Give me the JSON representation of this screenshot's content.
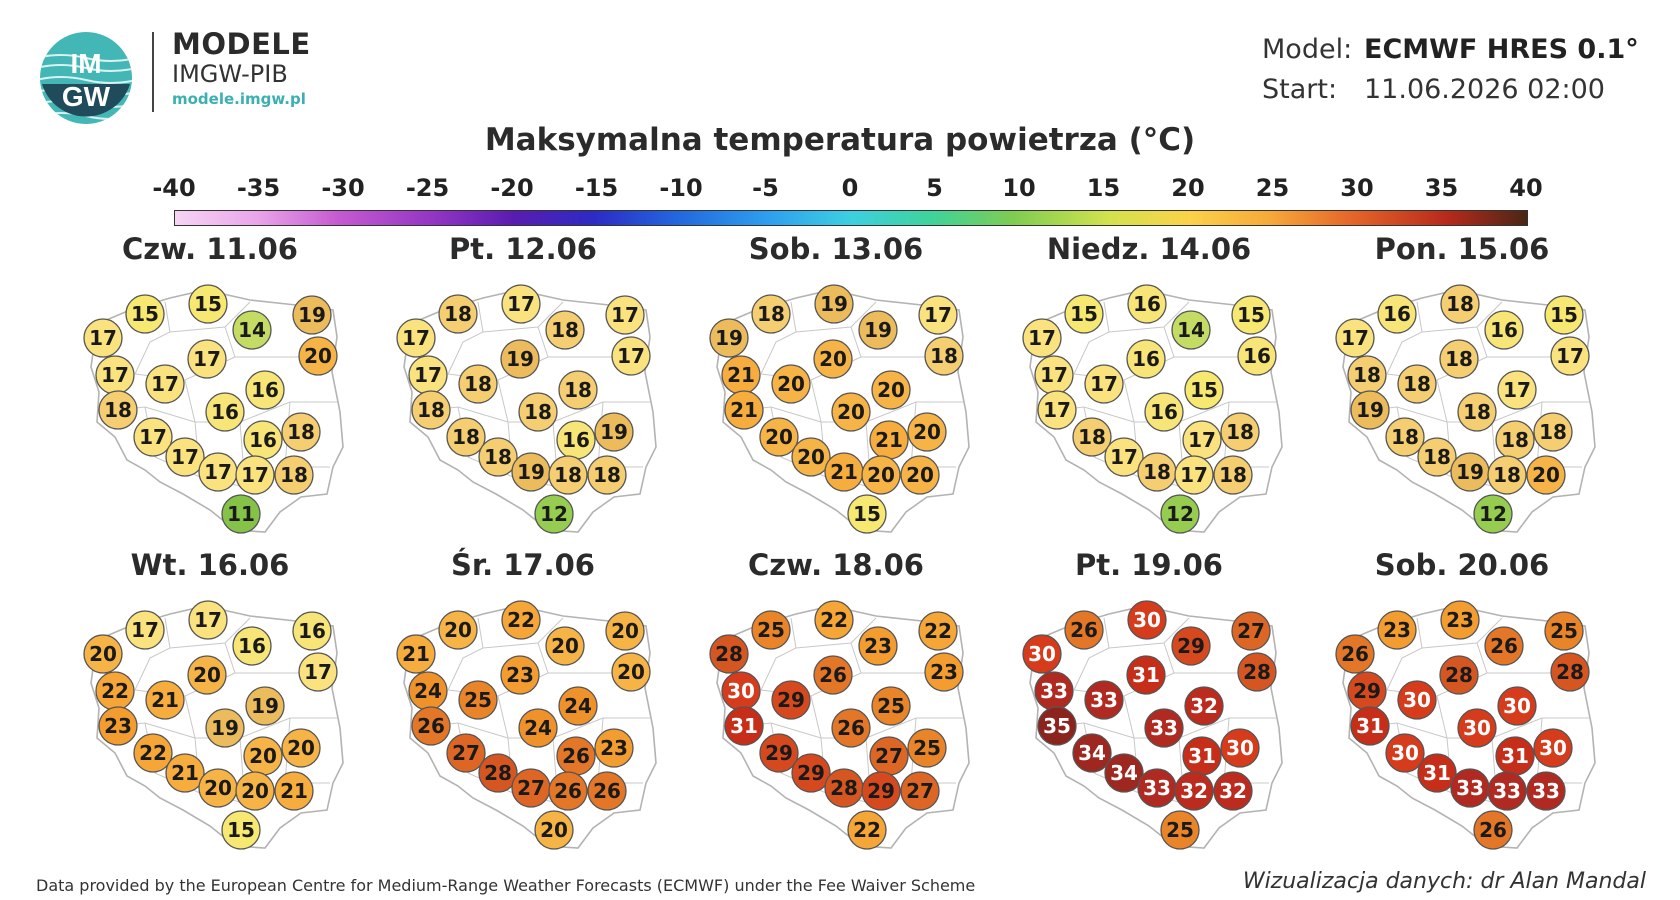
{
  "brand": {
    "name": "MODELE",
    "org": "IMGW-PIB",
    "url": "modele.imgw.pl",
    "logo_text_top": "IM",
    "logo_text_bottom": "GW"
  },
  "model_info": {
    "model_label": "Model:",
    "model_value": "ECMWF HRES 0.1°",
    "start_label": "Start:",
    "start_value": "11.06.2026 02:00"
  },
  "title": "Maksymalna temperatura powietrza (°C)",
  "colorbar": {
    "ticks": [
      "-40",
      "-35",
      "-30",
      "-25",
      "-20",
      "-15",
      "-10",
      "-5",
      "0",
      "5",
      "10",
      "15",
      "20",
      "25",
      "30",
      "35",
      "40"
    ],
    "min": -40,
    "max": 40
  },
  "panels": [
    {
      "date": "Czw. 11.06",
      "values": [
        15,
        15,
        17,
        14,
        19,
        20,
        17,
        17,
        17,
        18,
        16,
        16,
        17,
        16,
        18,
        17,
        17,
        17,
        18,
        11
      ]
    },
    {
      "date": "Pt. 12.06",
      "values": [
        18,
        17,
        17,
        18,
        17,
        17,
        17,
        18,
        19,
        18,
        18,
        18,
        18,
        16,
        19,
        18,
        19,
        18,
        18,
        12
      ]
    },
    {
      "date": "Sob. 13.06",
      "values": [
        18,
        19,
        19,
        19,
        17,
        18,
        21,
        20,
        20,
        21,
        20,
        20,
        20,
        21,
        20,
        20,
        21,
        20,
        20,
        15
      ]
    },
    {
      "date": "Niedz. 14.06",
      "values": [
        15,
        16,
        17,
        14,
        15,
        16,
        17,
        17,
        16,
        17,
        16,
        15,
        18,
        17,
        18,
        17,
        18,
        17,
        18,
        12
      ]
    },
    {
      "date": "Pon. 15.06",
      "values": [
        16,
        18,
        17,
        16,
        15,
        17,
        18,
        18,
        18,
        19,
        18,
        17,
        18,
        18,
        18,
        18,
        19,
        18,
        20,
        12
      ]
    },
    {
      "date": "Wt. 16.06",
      "values": [
        17,
        17,
        20,
        16,
        16,
        17,
        22,
        21,
        20,
        23,
        19,
        19,
        22,
        20,
        20,
        21,
        20,
        20,
        21,
        15
      ]
    },
    {
      "date": "Śr. 17.06",
      "values": [
        20,
        22,
        21,
        20,
        20,
        20,
        24,
        25,
        23,
        26,
        24,
        24,
        27,
        26,
        23,
        28,
        27,
        26,
        26,
        20
      ]
    },
    {
      "date": "Czw. 18.06",
      "values": [
        25,
        22,
        28,
        23,
        22,
        23,
        30,
        29,
        26,
        31,
        26,
        25,
        29,
        27,
        25,
        29,
        28,
        29,
        27,
        22
      ]
    },
    {
      "date": "Pt. 19.06",
      "values": [
        26,
        30,
        30,
        29,
        27,
        28,
        33,
        33,
        31,
        35,
        33,
        32,
        34,
        31,
        30,
        34,
        33,
        32,
        32,
        25
      ]
    },
    {
      "date": "Sob. 20.06",
      "values": [
        23,
        23,
        26,
        26,
        25,
        28,
        29,
        30,
        28,
        31,
        30,
        30,
        30,
        31,
        30,
        31,
        33,
        33,
        33,
        26
      ]
    }
  ],
  "footer": {
    "left": "Data provided by the European Centre for Medium-Range Weather Forecasts (ECMWF) under the Fee Waiver Scheme",
    "right": "Wizualizacja danych: dr Alan Mandal"
  }
}
